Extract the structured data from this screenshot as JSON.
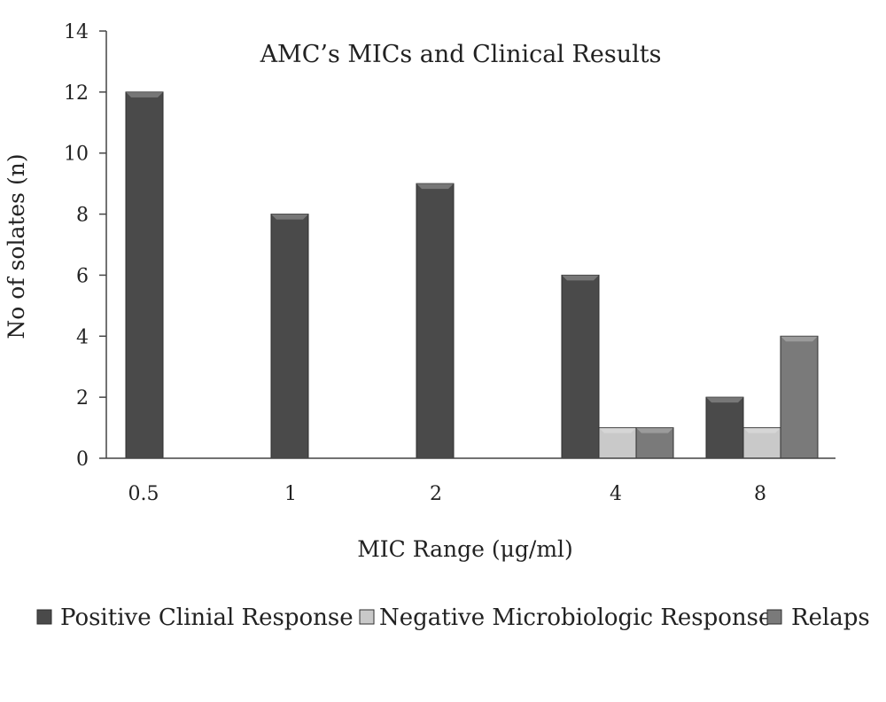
{
  "chart_data": {
    "type": "bar",
    "title": "AMC’s MICs and Clinical Results",
    "xlabel": "MIC Range (μg/ml)",
    "ylabel": "No of solates (n)",
    "categories": [
      "0.5",
      "1",
      "2",
      "4",
      "8"
    ],
    "ylim": [
      0,
      14
    ],
    "yticks": [
      0,
      2,
      4,
      6,
      8,
      10,
      12,
      14
    ],
    "grid": false,
    "legend_position": "bottom",
    "series": [
      {
        "name": "Positive Clinial Response",
        "values": [
          12,
          8,
          9,
          6,
          2
        ],
        "color": "#4a4a4a"
      },
      {
        "name": "Negative Microbiologic Response",
        "values": [
          0,
          0,
          0,
          1,
          1
        ],
        "color": "#c9c9c9"
      },
      {
        "name": "Relaps",
        "values": [
          0,
          0,
          0,
          1,
          4
        ],
        "color": "#7a7a7a"
      }
    ]
  }
}
